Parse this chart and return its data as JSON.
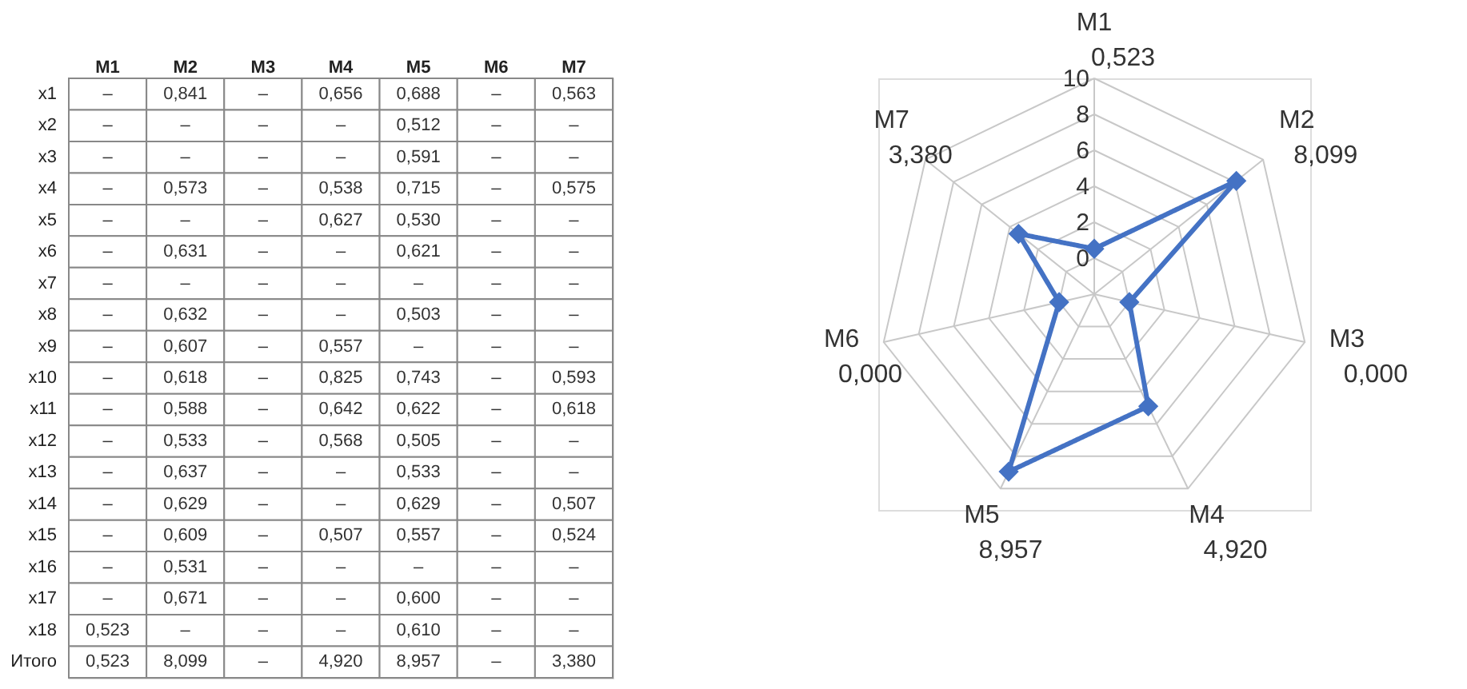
{
  "chart_data": [
    {
      "type": "other",
      "categories": [
        "M1",
        "M2",
        "M3",
        "M4",
        "M5",
        "M6",
        "M7"
      ],
      "y_categories": [
        "x1",
        "x2",
        "x3",
        "x4",
        "x5",
        "x6",
        "x7",
        "x8",
        "x9",
        "x10",
        "x11",
        "x12",
        "x13",
        "x14",
        "x15",
        "x16",
        "x17",
        "x18",
        "Итого"
      ],
      "cell_labels": [
        [
          "–",
          "0,841",
          "–",
          "0,656",
          "0,688",
          "–",
          "0,563"
        ],
        [
          "–",
          "–",
          "–",
          "–",
          "0,512",
          "–",
          "–"
        ],
        [
          "–",
          "–",
          "–",
          "–",
          "0,591",
          "–",
          "–"
        ],
        [
          "–",
          "0,573",
          "–",
          "0,538",
          "0,715",
          "–",
          "0,575"
        ],
        [
          "–",
          "–",
          "–",
          "0,627",
          "0,530",
          "–",
          "–"
        ],
        [
          "–",
          "0,631",
          "–",
          "–",
          "0,621",
          "–",
          "–"
        ],
        [
          "–",
          "–",
          "–",
          "–",
          "–",
          "–",
          "–"
        ],
        [
          "–",
          "0,632",
          "–",
          "–",
          "0,503",
          "–",
          "–"
        ],
        [
          "–",
          "0,607",
          "–",
          "0,557",
          "–",
          "–",
          "–"
        ],
        [
          "–",
          "0,618",
          "–",
          "0,825",
          "0,743",
          "–",
          "0,593"
        ],
        [
          "–",
          "0,588",
          "–",
          "0,642",
          "0,622",
          "–",
          "0,618"
        ],
        [
          "–",
          "0,533",
          "–",
          "0,568",
          "0,505",
          "–",
          "–"
        ],
        [
          "–",
          "0,637",
          "–",
          "–",
          "0,533",
          "–",
          "–"
        ],
        [
          "–",
          "0,629",
          "–",
          "–",
          "0,629",
          "–",
          "0,507"
        ],
        [
          "–",
          "0,609",
          "–",
          "0,507",
          "0,557",
          "–",
          "0,524"
        ],
        [
          "–",
          "0,531",
          "–",
          "–",
          "–",
          "–",
          "–"
        ],
        [
          "–",
          "0,671",
          "–",
          "–",
          "0,600",
          "–",
          "–"
        ],
        [
          "0,523",
          "–",
          "–",
          "–",
          "0,610",
          "–",
          "–"
        ],
        [
          "0,523",
          "8,099",
          "–",
          "4,920",
          "8,957",
          "–",
          "3,380"
        ]
      ]
    },
    {
      "type": "radar",
      "categories": [
        "M1",
        "M2",
        "M3",
        "M4",
        "M5",
        "M6",
        "M7"
      ],
      "series": [
        {
          "color": "#4472c4",
          "values": [
            0.523,
            8.099,
            0.0,
            4.92,
            8.957,
            0.0,
            3.38
          ]
        }
      ],
      "annotations": [
        "0,523",
        "8,099",
        "0,000",
        "4,920",
        "8,957",
        "0,000",
        "3,380"
      ],
      "ylim": [
        -2,
        10
      ],
      "yticks": [
        0,
        2,
        4,
        6,
        8,
        10
      ],
      "grid": true,
      "marker": "diamond",
      "line_style": "solid"
    }
  ]
}
